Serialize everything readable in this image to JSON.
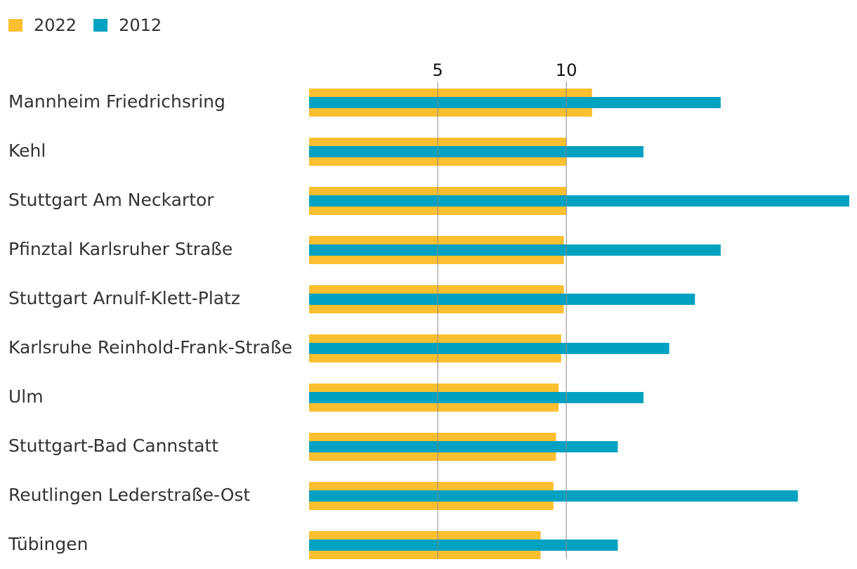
{
  "chart_data": {
    "type": "bar",
    "orientation": "horizontal",
    "categories": [
      "Mannheim Friedrichsring",
      "Kehl",
      "Stuttgart Am Neckartor",
      "Pfinztal Karlsruher Straße",
      "Stuttgart Arnulf-Klett-Platz",
      "Karlsruhe Reinhold-Frank-Straße",
      "Ulm",
      "Stuttgart-Bad Cannstatt",
      "Reutlingen Lederstraße-Ost",
      "Tübingen"
    ],
    "series": [
      {
        "name": "2022",
        "color": "#fbbf2f",
        "values": [
          11,
          10,
          10,
          9.9,
          9.9,
          9.8,
          9.7,
          9.6,
          9.5,
          9.0
        ]
      },
      {
        "name": "2012",
        "color": "#00a1c1",
        "values": [
          16,
          13,
          21,
          16,
          15,
          14,
          13,
          12,
          19,
          12
        ]
      }
    ],
    "xlim": [
      0,
      21.3
    ],
    "xticks": [
      5,
      10
    ],
    "grid": true,
    "legend": "top-left"
  }
}
